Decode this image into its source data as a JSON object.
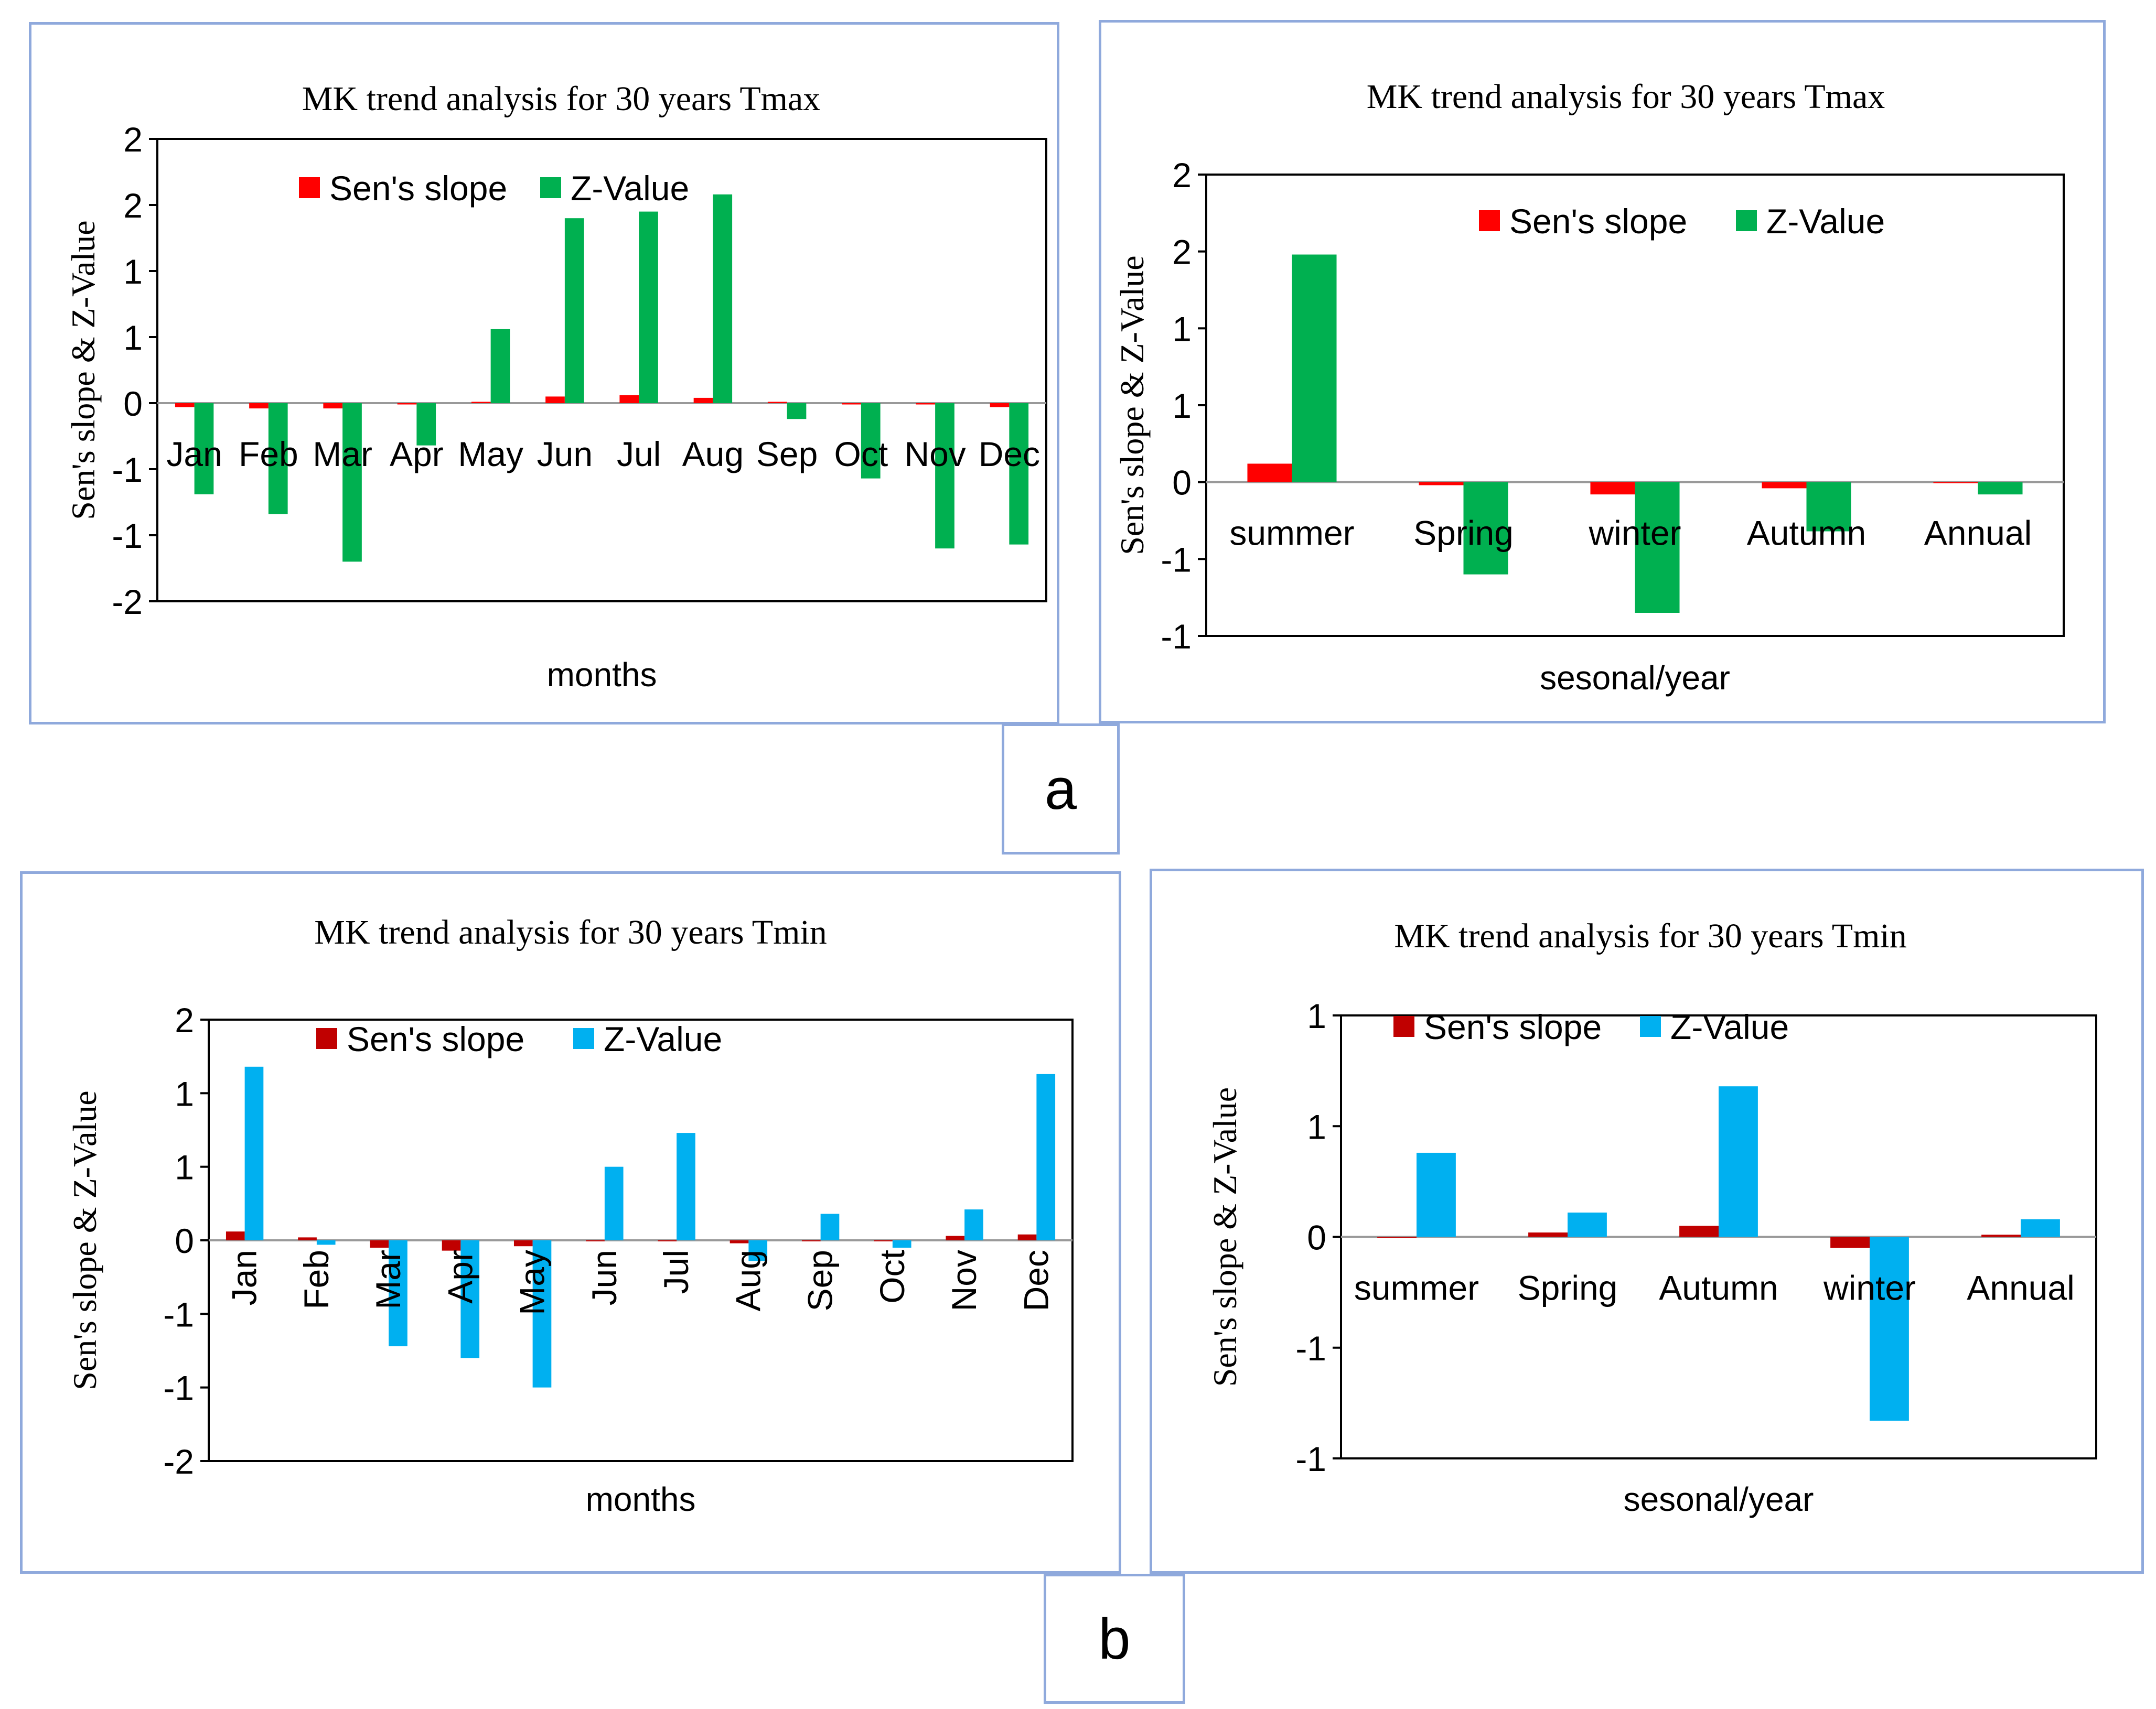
{
  "figure_labels": {
    "a": "a",
    "b": "b"
  },
  "colors": {
    "sens_slope_a": "#ff0000",
    "z_value_a": "#00b050",
    "sens_slope_b": "#c00000",
    "z_value_b": "#00b0f0"
  },
  "chart_data": [
    {
      "id": "a-monthly",
      "type": "bar",
      "title": "MK trend analysis  for 30 years Tmax",
      "xlabel": "months",
      "ylabel": "Sen's slope & Z-Value",
      "ylim": [
        -1.5,
        2
      ],
      "yticks": [
        -1.5,
        -1,
        -0.5,
        0,
        0.5,
        1,
        1.5,
        2
      ],
      "ytick_labels": [
        "-2",
        "-1",
        "-1",
        "0",
        "1",
        "1",
        "2",
        "2"
      ],
      "categories": [
        "Jan",
        "Feb",
        "Mar",
        "Apr",
        "May",
        "Jun",
        "Jul",
        "Aug",
        "Sep",
        "Oct",
        "Nov",
        "Dec"
      ],
      "series": [
        {
          "name": "Sen's slope",
          "color_key": "sens_slope_a",
          "values": [
            -0.03,
            -0.04,
            -0.04,
            -0.01,
            0.01,
            0.05,
            0.06,
            0.04,
            0.01,
            -0.01,
            -0.01,
            -0.03
          ]
        },
        {
          "name": "Z-Value",
          "color_key": "z_value_a",
          "values": [
            -0.69,
            -0.84,
            -1.2,
            -0.32,
            0.56,
            1.4,
            1.45,
            1.58,
            -0.12,
            -0.57,
            -1.1,
            -1.07
          ]
        }
      ]
    },
    {
      "id": "a-seasonal",
      "type": "bar",
      "title": "MK trend analysis  for 30 years Tmax",
      "xlabel": "sesonal/year",
      "ylabel": "Sen's slope & Z-Value",
      "ylim": [
        -1,
        2
      ],
      "yticks": [
        -1,
        -0.5,
        0,
        0.5,
        1,
        1.5,
        2
      ],
      "ytick_labels": [
        "-1",
        "-1",
        "0",
        "1",
        "1",
        "2",
        "2"
      ],
      "categories": [
        "summer",
        "Spring",
        "winter",
        "Autumn",
        "Annual"
      ],
      "series": [
        {
          "name": "Sen's slope",
          "color_key": "sens_slope_a",
          "values": [
            0.12,
            -0.02,
            -0.08,
            -0.04,
            0
          ]
        },
        {
          "name": "Z-Value",
          "color_key": "z_value_a",
          "values": [
            1.48,
            -0.6,
            -0.85,
            -0.32,
            -0.08
          ]
        }
      ]
    },
    {
      "id": "b-monthly",
      "type": "bar",
      "title": "MK trend analysis  for 30 years Tmin",
      "xlabel": "months",
      "ylabel": "Sen's slope & Z-Value",
      "ylim": [
        -1.5,
        1.5
      ],
      "yticks": [
        -1.5,
        -1,
        -0.5,
        0,
        0.5,
        1,
        1.5
      ],
      "ytick_labels": [
        "-2",
        "-1",
        "-1",
        "0",
        "1",
        "1",
        "2"
      ],
      "categories": [
        "Jan",
        "Feb",
        "Mar",
        "Apr",
        "May",
        "Jun",
        "Jul",
        "Aug",
        "Sep",
        "Oct",
        "Nov",
        "Dec"
      ],
      "series": [
        {
          "name": "Sen's slope",
          "color_key": "sens_slope_b",
          "values": [
            0.06,
            0.02,
            -0.05,
            -0.07,
            -0.04,
            0,
            0,
            -0.02,
            0,
            0,
            0.03,
            0.04
          ]
        },
        {
          "name": "Z-Value",
          "color_key": "z_value_b",
          "values": [
            1.18,
            -0.03,
            -0.72,
            -0.8,
            -1.0,
            0.5,
            0.73,
            -0.14,
            0.18,
            -0.05,
            0.21,
            1.13
          ]
        }
      ]
    },
    {
      "id": "b-seasonal",
      "type": "bar",
      "title": "MK trend analysis  for 30 years Tmin",
      "xlabel": "sesonal/year",
      "ylabel": "Sen's slope & Z-Value",
      "ylim": [
        -1,
        1
      ],
      "yticks": [
        -1,
        -0.5,
        0,
        0.5,
        1
      ],
      "ytick_labels": [
        "-1",
        "-1",
        "0",
        "1",
        "1"
      ],
      "categories": [
        "summer",
        "Spring",
        "Autumn",
        "winter",
        "Annual"
      ],
      "series": [
        {
          "name": "Sen's slope",
          "color_key": "sens_slope_b",
          "values": [
            0,
            0.02,
            0.05,
            -0.05,
            0.01
          ]
        },
        {
          "name": "Z-Value",
          "color_key": "z_value_b",
          "values": [
            0.38,
            0.11,
            0.68,
            -0.83,
            0.08
          ]
        }
      ]
    }
  ]
}
